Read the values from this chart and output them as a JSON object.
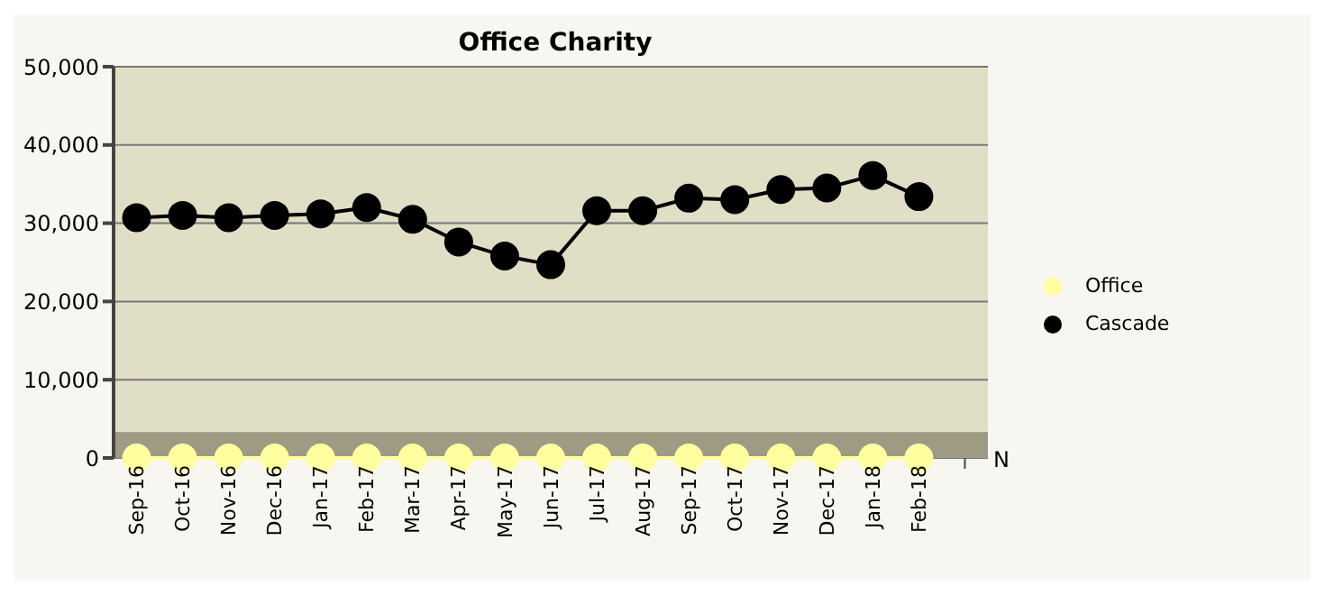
{
  "chart_data": {
    "type": "line",
    "title": "Office Charity",
    "categories": [
      "Sep-16",
      "Oct-16",
      "Nov-16",
      "Dec-16",
      "Jan-17",
      "Feb-17",
      "Mar-17",
      "Apr-17",
      "May-17",
      "Jun-17",
      "Jul-17",
      "Aug-17",
      "Sep-17",
      "Oct-17",
      "Nov-17",
      "Dec-17",
      "Jan-18",
      "Feb-18",
      null
    ],
    "series": [
      {
        "name": "Office",
        "color": "#ffffa0",
        "values": [
          0,
          0,
          0,
          0,
          0,
          0,
          0,
          0,
          0,
          0,
          0,
          0,
          0,
          0,
          0,
          0,
          0,
          0,
          null
        ]
      },
      {
        "name": "Cascade",
        "color": "#000000",
        "values": [
          30700,
          31000,
          30700,
          31000,
          31200,
          32000,
          30500,
          27600,
          25800,
          24700,
          31600,
          31600,
          33200,
          33000,
          34300,
          34500,
          36100,
          33400,
          null
        ]
      }
    ],
    "ylim": [
      0,
      50000
    ],
    "yticks": [
      0,
      {
        "value": 10000,
        "label": "10,000"
      },
      {
        "value": 20000,
        "label": "20,000"
      },
      {
        "value": 30000,
        "label": "30,000"
      },
      {
        "value": 40000,
        "label": "40,000"
      },
      {
        "value": 50000,
        "label": "50,000"
      }
    ],
    "bands": [
      {
        "axis": "y",
        "from": 0,
        "to": 3300,
        "color": "#9e9a83"
      }
    ],
    "annotations": [
      "N"
    ],
    "grid": "y",
    "legend": "right",
    "marker": "circle",
    "line_style": "solid"
  }
}
